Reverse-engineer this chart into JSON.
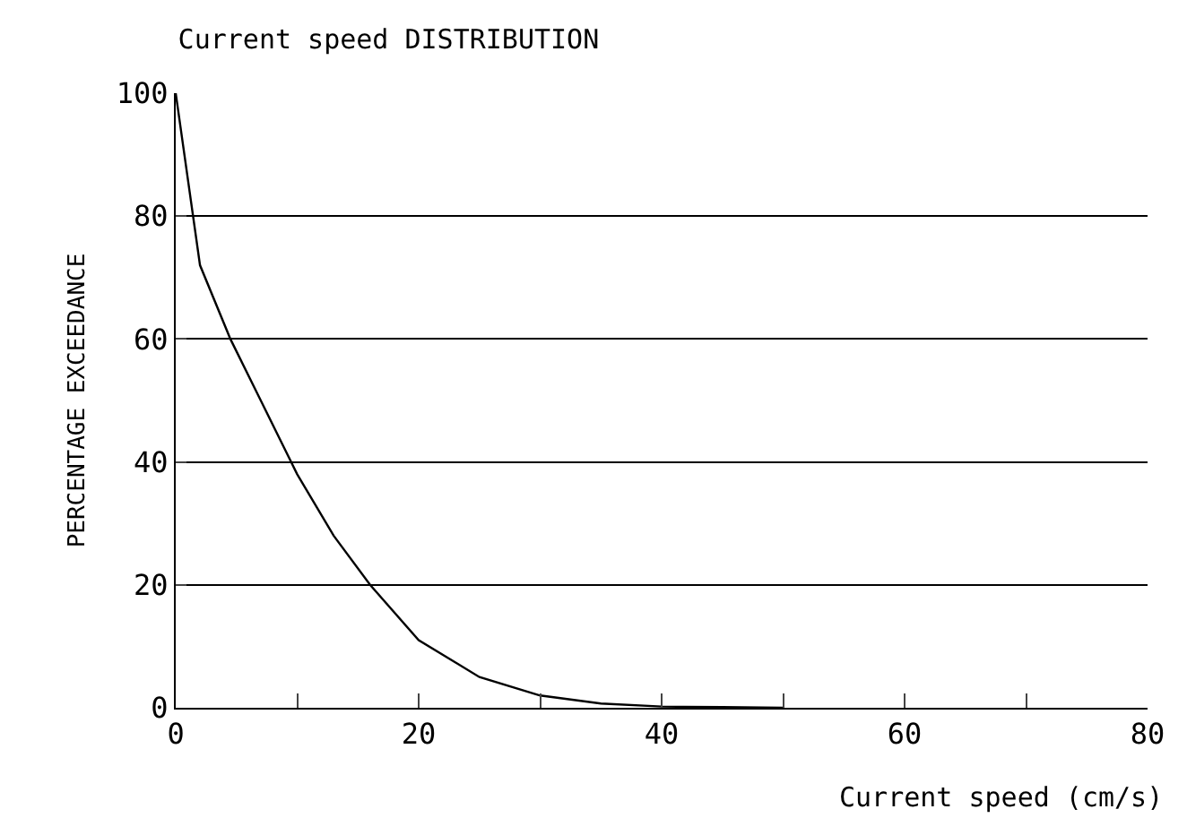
{
  "chart_data": {
    "type": "line",
    "title": "Current speed DISTRIBUTION",
    "xlabel": "Current speed (cm/s)",
    "ylabel": "PERCENTAGE EXCEEDANCE",
    "x": [
      0,
      2,
      4.5,
      7,
      10,
      13,
      16,
      20,
      25,
      30,
      35,
      40,
      45,
      50
    ],
    "series": [
      {
        "color": "#000000",
        "values": [
          100,
          72,
          60,
          50,
          38,
          28,
          20,
          11,
          5,
          2,
          0.7,
          0.2,
          0.1,
          0
        ]
      }
    ],
    "xlim": [
      0,
      80
    ],
    "xticks": [
      0,
      {
        "value": 10,
        "label": null
      },
      20,
      {
        "value": 30,
        "label": null
      },
      40,
      {
        "value": 50,
        "label": null
      },
      60,
      {
        "value": 70,
        "label": null
      },
      80
    ],
    "ylim": [
      0,
      100
    ],
    "yticks": [
      0,
      20,
      40,
      60,
      80,
      100
    ],
    "grid": "y",
    "legend": false,
    "marker": "none",
    "line_style": "solid"
  }
}
